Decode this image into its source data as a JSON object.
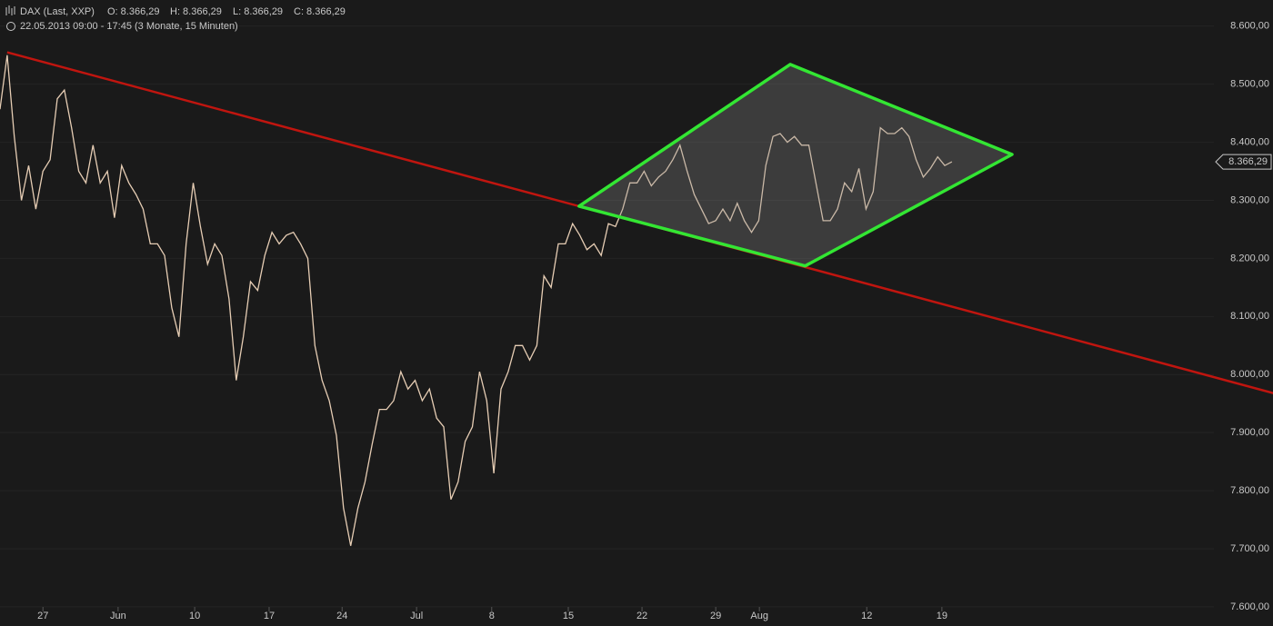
{
  "chart_data": {
    "type": "line",
    "title": "DAX (Last, XXP)",
    "ohlc": [
      "O: 8.366,29",
      "H: 8.366,29",
      "L: 8.366,29",
      "C: 8.366,29"
    ],
    "subtitle": "22.05.2013 09:00 - 17:45 (3 Monate, 15 Minuten)",
    "series": [
      {
        "name": "DAX",
        "color": "#e6cdb4",
        "values": [
          8457,
          8550,
          8410,
          8300,
          8360,
          8285,
          8350,
          8370,
          8475,
          8490,
          8425,
          8350,
          8330,
          8395,
          8330,
          8350,
          8270,
          8360,
          8330,
          8310,
          8285,
          8225,
          8225,
          8205,
          8115,
          8065,
          8225,
          8330,
          8255,
          8190,
          8225,
          8205,
          8130,
          7990,
          8065,
          8160,
          8145,
          8205,
          8245,
          8225,
          8240,
          8245,
          8225,
          8200,
          8050,
          7990,
          7955,
          7895,
          7770,
          7705,
          7770,
          7815,
          7880,
          7940,
          7940,
          7955,
          8005,
          7975,
          7990,
          7955,
          7975,
          7925,
          7910,
          7785,
          7815,
          7885,
          7910,
          8005,
          7955,
          7830,
          7975,
          8005,
          8050,
          8050,
          8025,
          8050,
          8170,
          8150,
          8225,
          8225,
          8260,
          8240,
          8215,
          8225,
          8205,
          8260,
          8255,
          8285,
          8330,
          8330,
          8350,
          8325,
          8340,
          8350,
          8370,
          8395,
          8350,
          8310,
          8285,
          8260,
          8265,
          8285,
          8265,
          8295,
          8265,
          8245,
          8265,
          8360,
          8410,
          8415,
          8400,
          8410,
          8395,
          8395,
          8330,
          8265,
          8265,
          8285,
          8330,
          8315,
          8355,
          8285,
          8315,
          8425,
          8415,
          8415,
          8425,
          8410,
          8370,
          8340,
          8355,
          8375,
          8360,
          8366.29
        ]
      }
    ],
    "last_price": {
      "value": 8366.29,
      "label": "8.366,29"
    },
    "xlim": [
      0,
      169.6
    ],
    "xticks": [
      {
        "value": 6,
        "label": "27"
      },
      {
        "value": 16.5,
        "label": "Jun"
      },
      {
        "value": 27.2,
        "label": "10"
      },
      {
        "value": 37.6,
        "label": "17"
      },
      {
        "value": 47.8,
        "label": "24"
      },
      {
        "value": 58.2,
        "label": "Jul"
      },
      {
        "value": 68.7,
        "label": "8"
      },
      {
        "value": 79.4,
        "label": "15"
      },
      {
        "value": 89.7,
        "label": "22"
      },
      {
        "value": 100,
        "label": "29"
      },
      {
        "value": 106.1,
        "label": "Aug"
      },
      {
        "value": 121.1,
        "label": "12"
      },
      {
        "value": 131.6,
        "label": "19"
      }
    ],
    "ylim": [
      7567,
      8645
    ],
    "yticks": [
      {
        "value": 7600,
        "label": "7.600,00"
      },
      {
        "value": 7700,
        "label": "7.700,00"
      },
      {
        "value": 7800,
        "label": "7.800,00"
      },
      {
        "value": 7900,
        "label": "7.900,00"
      },
      {
        "value": 8000,
        "label": "8.000,00"
      },
      {
        "value": 8100,
        "label": "8.100,00"
      },
      {
        "value": 8200,
        "label": "8.200,00"
      },
      {
        "value": 8300,
        "label": "8.300,00"
      },
      {
        "value": 8400,
        "label": "8.400,00"
      },
      {
        "value": 8500,
        "label": "8.500,00"
      },
      {
        "value": 8600,
        "label": "8.600,00"
      }
    ],
    "grid": true,
    "trendline": {
      "color": "#c0150f",
      "x": [
        1,
        177.9
      ],
      "y": [
        8555,
        7968
      ]
    },
    "diamond": {
      "color": "#33e633",
      "x": [
        80.9,
        110.4,
        141.4,
        112.5
      ],
      "y": [
        8290,
        8534,
        8379,
        8187
      ]
    }
  }
}
